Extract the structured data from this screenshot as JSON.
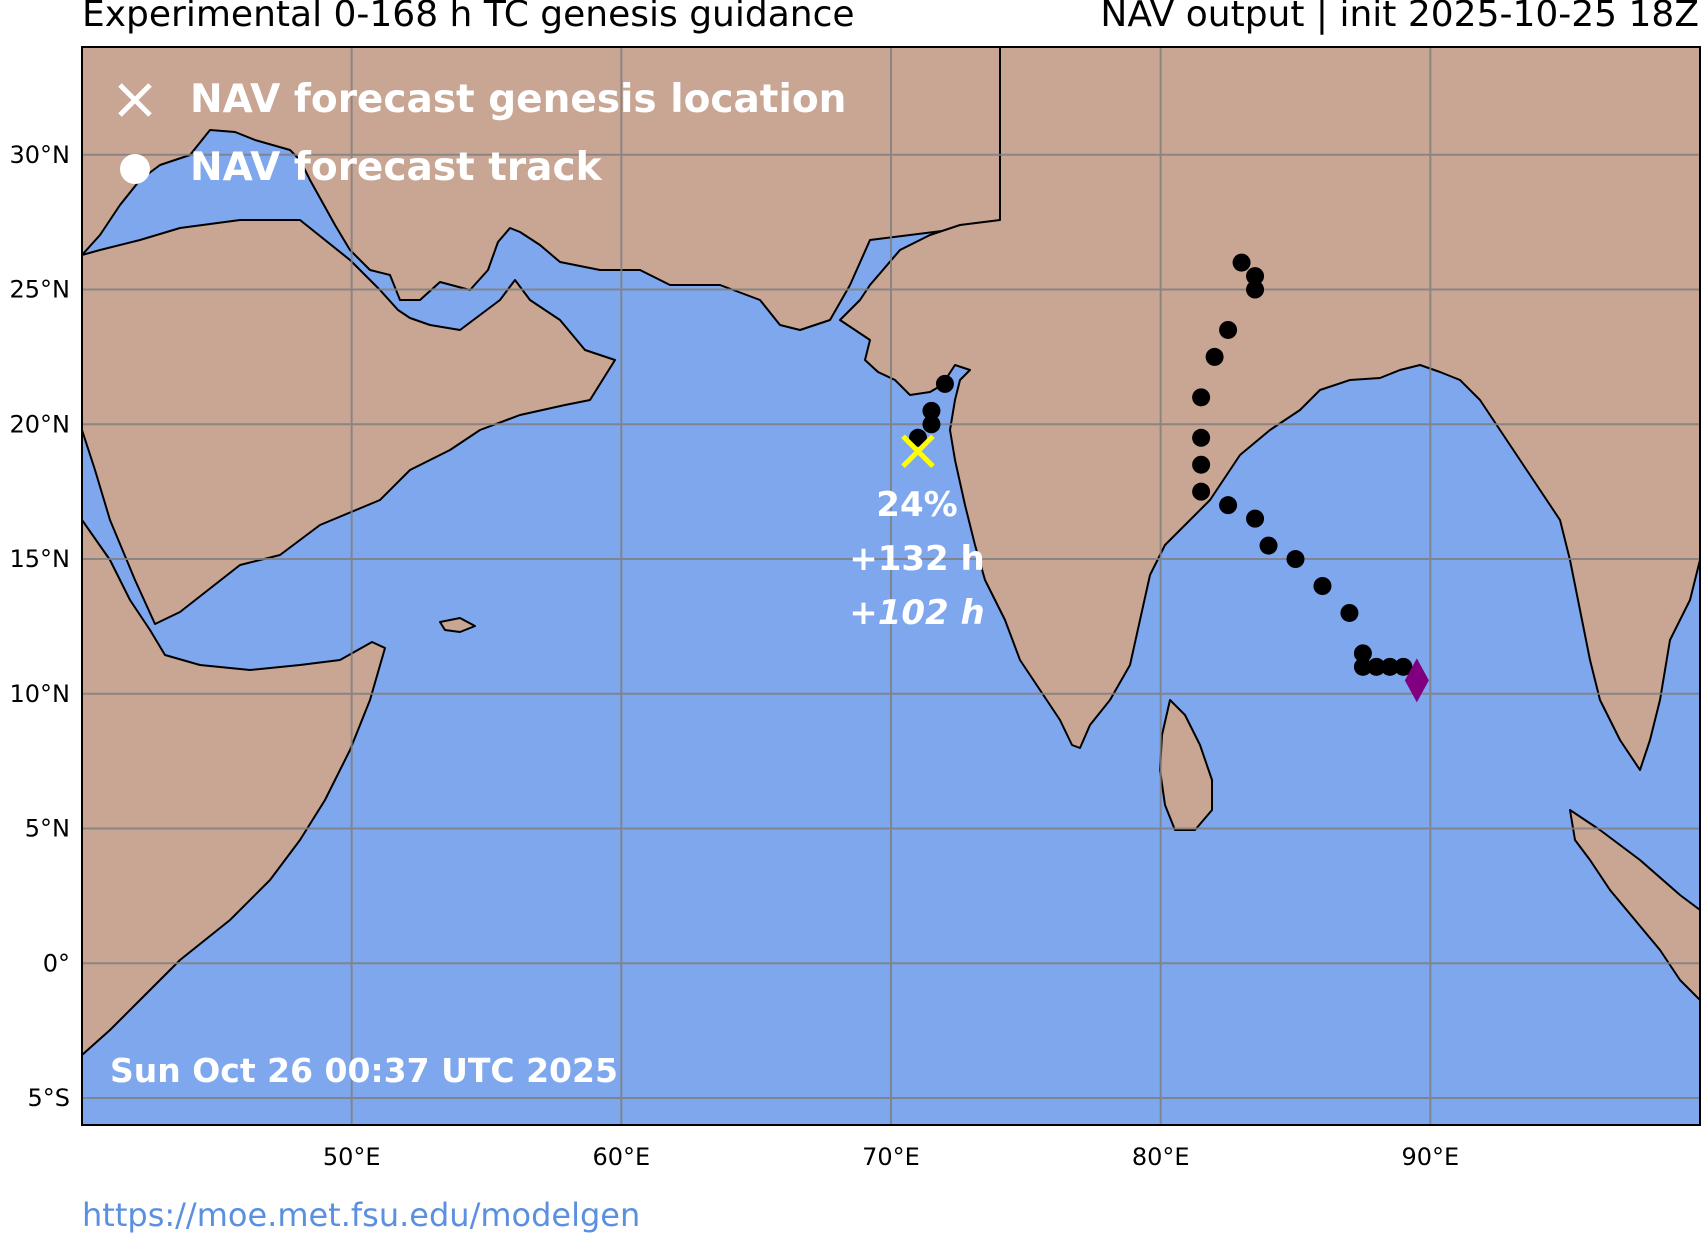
{
  "header": {
    "title_left": "Experimental 0-168 h TC genesis guidance",
    "title_right": "NAV output | init 2025-10-25 18Z"
  },
  "legend": {
    "genesis_label": "NAV forecast genesis location",
    "track_label": "NAV forecast track"
  },
  "annotation": {
    "probability": "24%",
    "lead_time": "+132 h",
    "lead_time_alt": "+102 h"
  },
  "timestamp": "Sun Oct 26 00:37 UTC 2025",
  "footer_url": "https://moe.met.fsu.edu/modelgen",
  "axes": {
    "lon_ticks": [
      "50°E",
      "60°E",
      "70°E",
      "80°E",
      "90°E"
    ],
    "lat_ticks": [
      "30°N",
      "25°N",
      "20°N",
      "15°N",
      "10°N",
      "5°N",
      "0°",
      "5°S"
    ]
  },
  "colors": {
    "ocean": "#7fa7ee",
    "land": "#c9a594",
    "genesis_marker": "#ffff00",
    "track": "#000000",
    "diamond": "#800080",
    "url": "#5b8fe0"
  },
  "chart_data": {
    "type": "map",
    "extent": {
      "lon": [
        40,
        100
      ],
      "lat": [
        -6,
        34
      ]
    },
    "genesis": {
      "lon": 71.0,
      "lat": 19.0,
      "probability": 24,
      "lead_h": 132,
      "lead_h_alt": 102
    },
    "tracks": [
      [
        [
          71.0,
          19.5
        ],
        [
          71.5,
          20.0
        ],
        [
          71.5,
          20.5
        ],
        [
          72.0,
          21.5
        ]
      ],
      [
        [
          89.0,
          11.0
        ],
        [
          88.5,
          11.0
        ],
        [
          88.0,
          11.0
        ],
        [
          87.5,
          11.0
        ],
        [
          87.5,
          11.5
        ],
        [
          87.0,
          13.0
        ],
        [
          86.0,
          14.0
        ],
        [
          85.0,
          15.0
        ],
        [
          84.0,
          15.5
        ],
        [
          83.5,
          16.5
        ],
        [
          82.5,
          17.0
        ],
        [
          81.5,
          17.5
        ],
        [
          81.5,
          18.5
        ],
        [
          81.5,
          19.5
        ],
        [
          81.5,
          21.0
        ],
        [
          82.0,
          22.5
        ],
        [
          82.5,
          23.5
        ],
        [
          83.5,
          25.0
        ],
        [
          83.5,
          25.5
        ],
        [
          83.0,
          26.0
        ]
      ]
    ],
    "diamond": {
      "lon": 89.5,
      "lat": 10.5
    }
  }
}
